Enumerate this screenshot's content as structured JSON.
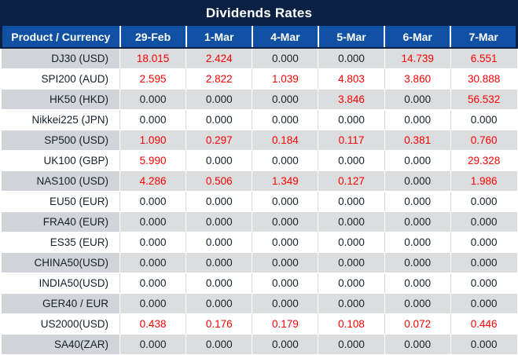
{
  "title": "Dividends Rates",
  "colors": {
    "title_bar_bg": "#0b2144",
    "header_row_bg": "#1151a3",
    "header_text": "#ffffff",
    "gray_row_product_bg": "#d1d4d8",
    "gray_row_value_bg": "#dcddde",
    "white_row_bg": "#ffffff",
    "zero_value_text": "#17202a",
    "nonzero_value_text": "#fe0000"
  },
  "table": {
    "product_header": "Product / Currency",
    "date_headers": [
      "29-Feb",
      "1-Mar",
      "4-Mar",
      "5-Mar",
      "6-Mar",
      "7-Mar"
    ],
    "rows": [
      {
        "product": "DJ30 (USD)",
        "values": [
          "18.015",
          "2.424",
          "0.000",
          "0.000",
          "14.739",
          "6.551"
        ]
      },
      {
        "product": "SPI200 (AUD)",
        "values": [
          "2.595",
          "2.822",
          "1.039",
          "4.803",
          "3.860",
          "30.888"
        ]
      },
      {
        "product": "HK50 (HKD)",
        "values": [
          "0.000",
          "0.000",
          "0.000",
          "3.846",
          "0.000",
          "56.532"
        ]
      },
      {
        "product": "Nikkei225 (JPN)",
        "values": [
          "0.000",
          "0.000",
          "0.000",
          "0.000",
          "0.000",
          "0.000"
        ]
      },
      {
        "product": "SP500 (USD)",
        "values": [
          "1.090",
          "0.297",
          "0.184",
          "0.117",
          "0.381",
          "0.760"
        ]
      },
      {
        "product": "UK100 (GBP)",
        "values": [
          "5.990",
          "0.000",
          "0.000",
          "0.000",
          "0.000",
          "29.328"
        ]
      },
      {
        "product": "NAS100 (USD)",
        "values": [
          "4.286",
          "0.506",
          "1.349",
          "0.127",
          "0.000",
          "1.986"
        ]
      },
      {
        "product": "EU50 (EUR)",
        "values": [
          "0.000",
          "0.000",
          "0.000",
          "0.000",
          "0.000",
          "0.000"
        ]
      },
      {
        "product": "FRA40 (EUR)",
        "values": [
          "0.000",
          "0.000",
          "0.000",
          "0.000",
          "0.000",
          "0.000"
        ]
      },
      {
        "product": "ES35 (EUR)",
        "values": [
          "0.000",
          "0.000",
          "0.000",
          "0.000",
          "0.000",
          "0.000"
        ]
      },
      {
        "product": "CHINA50(USD)",
        "values": [
          "0.000",
          "0.000",
          "0.000",
          "0.000",
          "0.000",
          "0.000"
        ]
      },
      {
        "product": "INDIA50(USD)",
        "values": [
          "0.000",
          "0.000",
          "0.000",
          "0.000",
          "0.000",
          "0.000"
        ]
      },
      {
        "product": "GER40 / EUR",
        "values": [
          "0.000",
          "0.000",
          "0.000",
          "0.000",
          "0.000",
          "0.000"
        ]
      },
      {
        "product": "US2000(USD)",
        "values": [
          "0.438",
          "0.176",
          "0.179",
          "0.108",
          "0.072",
          "0.446"
        ]
      },
      {
        "product": "SA40(ZAR)",
        "values": [
          "0.000",
          "0.000",
          "0.000",
          "0.000",
          "0.000",
          "0.000"
        ]
      }
    ]
  }
}
